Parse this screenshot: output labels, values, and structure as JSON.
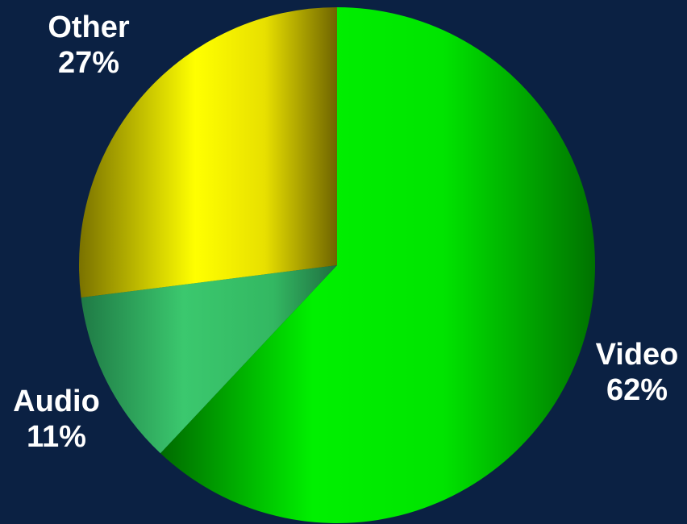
{
  "chart_data": {
    "type": "pie",
    "slices": [
      {
        "label": "Video",
        "value": 62,
        "value_label": "62%",
        "color": "#00e600"
      },
      {
        "label": "Audio",
        "value": 11,
        "value_label": "11%",
        "color": "#33c466"
      },
      {
        "label": "Other",
        "value": 27,
        "value_label": "27%",
        "color": "#f2f200"
      }
    ],
    "start": "12 o'clock",
    "direction": "clockwise",
    "labels_outside": true,
    "background": "#0b2143"
  }
}
